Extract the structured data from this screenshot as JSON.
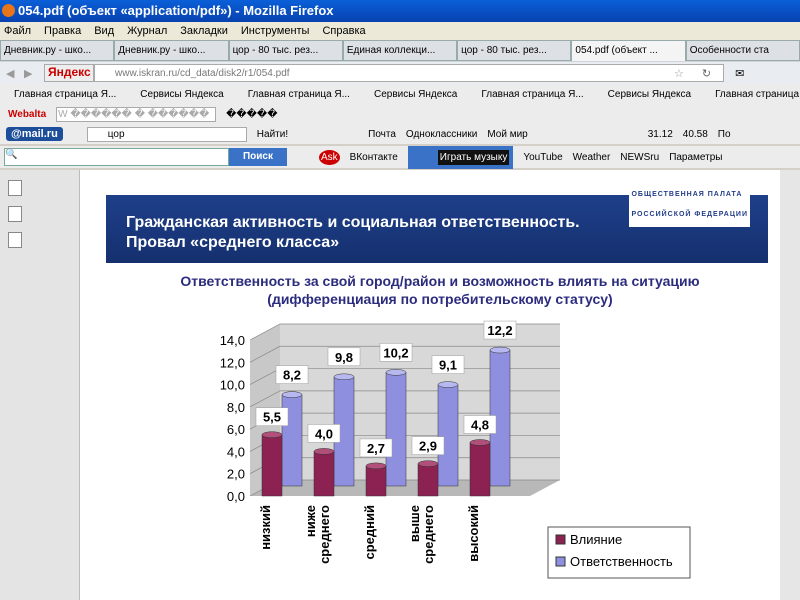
{
  "window": {
    "title": "054.pdf (объект «application/pdf») - Mozilla Firefox"
  },
  "menu": [
    "Файл",
    "Правка",
    "Вид",
    "Журнал",
    "Закладки",
    "Инструменты",
    "Справка"
  ],
  "tabs": [
    "Дневник.ру - шко...",
    "Дневник.ру - шко...",
    "цор - 80 тыс. рез...",
    "Единая коллекци...",
    "цор - 80 тыс. рез...",
    "054.pdf (объект ...",
    "Особенности ста"
  ],
  "nav": {
    "yandex": "Яндекс",
    "url": "www.iskran.ru/cd_data/disk2/r1/054.pdf"
  },
  "bookmarks": [
    "Главная страница Я...",
    "Сервисы Яндекса",
    "Главная страница Я...",
    "Сервисы Яндекса",
    "Главная страница Я...",
    "Сервисы Яндекса",
    "Главная страница Я..."
  ],
  "webalta": {
    "logo": "Webalta",
    "field": "W ������ � ������",
    "extra": "�����"
  },
  "mailbar": {
    "logo": "@mail.ru",
    "query": "цор",
    "find": "Найти!",
    "items": [
      "Почта",
      "Одноклассники",
      "Мой мир"
    ],
    "usd": "31.12",
    "eur": "40.58",
    "more": "По"
  },
  "searchbar": {
    "button": "Поиск",
    "items": [
      "ВКонтакте",
      "Играть музыку",
      "YouTube",
      "Weather",
      "NEWSru",
      "Параметры"
    ]
  },
  "slide": {
    "banner_line1": "Гражданская активность и социальная ответственность.",
    "banner_line2": "Провал «среднего класса»",
    "logo_line1": "ОБЩЕСТВЕННАЯ ПАЛАТА",
    "logo_line2": "РОССИЙСКОЙ ФЕДЕРАЦИИ",
    "subtitle": "Ответственность за свой город/район и возможность влиять на ситуацию (дифференциация по потребительскому статусу)"
  },
  "chart_data": {
    "type": "bar",
    "subtype": "3d-column",
    "categories": [
      "низкий",
      "ниже среднего",
      "средний",
      "выше среднего",
      "высокий"
    ],
    "series": [
      {
        "name": "Влияние",
        "values": [
          5.5,
          4.0,
          2.7,
          2.9,
          4.8
        ],
        "color": "#8b2252"
      },
      {
        "name": "Ответственность",
        "values": [
          8.2,
          9.8,
          10.2,
          9.1,
          12.2
        ],
        "color": "#8f8fe0"
      }
    ],
    "ylim": [
      0,
      14
    ],
    "yticks": [
      "0,0",
      "2,0",
      "4,0",
      "6,0",
      "8,0",
      "10,0",
      "12,0",
      "14,0"
    ],
    "grid": true,
    "legend": "bottom-right"
  }
}
